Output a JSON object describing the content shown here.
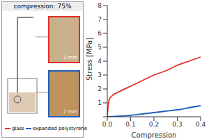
{
  "chart_data": {
    "type": "line",
    "x_label": "Compression",
    "y_label": "Stress [MPa]",
    "x": [
      0,
      0.005,
      0.01,
      0.02,
      0.05,
      0.1,
      0.15,
      0.2,
      0.25,
      0.3,
      0.35,
      0.4
    ],
    "series": [
      {
        "name": "glass",
        "color": "#e0302a",
        "values": [
          0,
          1.0,
          1.3,
          1.5,
          1.8,
          2.2,
          2.6,
          3.0,
          3.3,
          3.7,
          4.0,
          4.3
        ]
      },
      {
        "name": "expanded polystyrene",
        "color": "#1f5fbf",
        "values": [
          0,
          0.01,
          0.01,
          0.02,
          0.04,
          0.1,
          0.2,
          0.3,
          0.4,
          0.5,
          0.65,
          0.8
        ]
      }
    ],
    "xlim": [
      0,
      0.4
    ],
    "xticks": [
      {
        "value": 0,
        "label": "0.0"
      },
      {
        "value": 0.1,
        "label": "0.1"
      },
      {
        "value": 0.2,
        "label": "0.2"
      },
      {
        "value": 0.3,
        "label": "0.3"
      },
      {
        "value": 0.4,
        "label": "0.4"
      }
    ],
    "ylim": [
      0,
      8
    ],
    "yticks": [
      0,
      1,
      2,
      3,
      4,
      5,
      6,
      7,
      8
    ],
    "grid": false
  },
  "panel": {
    "title": "compression: 75%",
    "images": [
      {
        "scale": "2 mm"
      },
      {
        "scale": "2 mm"
      }
    ]
  }
}
